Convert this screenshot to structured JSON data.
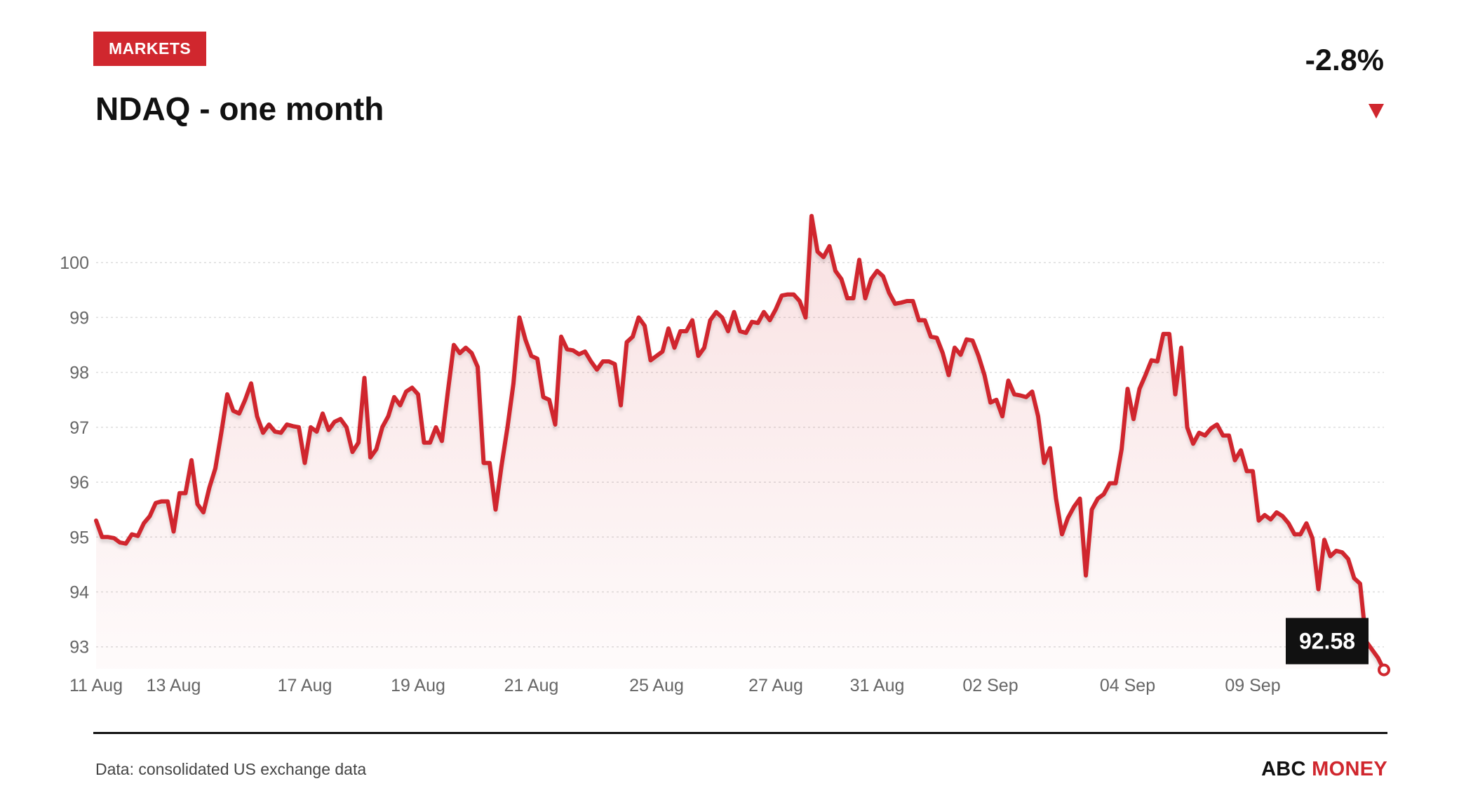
{
  "header": {
    "badge": "MARKETS",
    "title": "NDAQ - one month",
    "change": "-2.8%",
    "direction_icon": "down-triangle-icon"
  },
  "footer": {
    "source": "Data: consolidated US exchange data",
    "brand_part1": "ABC",
    "brand_part2": "MONEY"
  },
  "colors": {
    "accent": "#d0272e",
    "text": "#111111",
    "axis_text": "#666666",
    "grid": "#dddddd",
    "callout_bg": "#111111"
  },
  "chart_data": {
    "type": "area",
    "title": "NDAQ - one month",
    "xlabel": "",
    "ylabel": "",
    "ylim": [
      92.6,
      101.0
    ],
    "yticks": [
      93,
      94,
      95,
      96,
      97,
      98,
      99,
      100
    ],
    "grid": true,
    "x_tick_labels": [
      {
        "label": "11 Aug",
        "index": 0
      },
      {
        "label": "13 Aug",
        "index": 13
      },
      {
        "label": "17 Aug",
        "index": 35
      },
      {
        "label": "19 Aug",
        "index": 54
      },
      {
        "label": "21 Aug",
        "index": 73
      },
      {
        "label": "25 Aug",
        "index": 94
      },
      {
        "label": "27 Aug",
        "index": 114
      },
      {
        "label": "31 Aug",
        "index": 131
      },
      {
        "label": "02 Sep",
        "index": 150
      },
      {
        "label": "04 Sep",
        "index": 173
      },
      {
        "label": "09 Sep",
        "index": 194
      }
    ],
    "last_value_label": "92.58",
    "series": [
      {
        "values": [
          95.3,
          95.0,
          95.0,
          94.98,
          94.9,
          94.88,
          95.05,
          95.02,
          95.25,
          95.38,
          95.62,
          95.65,
          95.65,
          95.1,
          95.8,
          95.8,
          96.4,
          95.6,
          95.45,
          95.9,
          96.25,
          96.9,
          97.6,
          97.3,
          97.25,
          97.5,
          97.8,
          97.2,
          96.9,
          97.05,
          96.92,
          96.9,
          97.05,
          97.02,
          97.0,
          96.35,
          97.0,
          96.92,
          97.25,
          96.95,
          97.1,
          97.15,
          97.0,
          96.55,
          96.72,
          97.9,
          96.45,
          96.6,
          97.0,
          97.2,
          97.55,
          97.4,
          97.65,
          97.72,
          97.6,
          96.72,
          96.72,
          97.0,
          96.75,
          97.65,
          98.5,
          98.35,
          98.45,
          98.35,
          98.1,
          96.35,
          96.35,
          95.5,
          96.3,
          97.0,
          97.8,
          99.0,
          98.6,
          98.3,
          98.25,
          97.55,
          97.5,
          97.05,
          98.65,
          98.42,
          98.4,
          98.33,
          98.38,
          98.2,
          98.05,
          98.2,
          98.2,
          98.15,
          97.4,
          98.55,
          98.65,
          99.0,
          98.85,
          98.22,
          98.3,
          98.38,
          98.8,
          98.45,
          98.75,
          98.75,
          98.95,
          98.3,
          98.45,
          98.95,
          99.1,
          99.0,
          98.75,
          99.1,
          98.75,
          98.72,
          98.92,
          98.9,
          99.1,
          98.95,
          99.15,
          99.4,
          99.42,
          99.42,
          99.3,
          99.0,
          100.85,
          100.2,
          100.1,
          100.3,
          99.85,
          99.7,
          99.35,
          99.35,
          100.05,
          99.35,
          99.7,
          99.85,
          99.75,
          99.45,
          99.25,
          99.27,
          99.3,
          99.3,
          98.95,
          98.95,
          98.65,
          98.63,
          98.35,
          97.95,
          98.45,
          98.32,
          98.6,
          98.58,
          98.3,
          97.95,
          97.45,
          97.5,
          97.2,
          97.85,
          97.6,
          97.58,
          97.55,
          97.65,
          97.2,
          96.35,
          96.62,
          95.7,
          95.05,
          95.35,
          95.55,
          95.7,
          94.3,
          95.5,
          95.7,
          95.78,
          95.98,
          95.98,
          96.6,
          97.7,
          97.15,
          97.7,
          97.95,
          98.22,
          98.2,
          98.7,
          98.7,
          97.6,
          98.45,
          97.0,
          96.7,
          96.9,
          96.85,
          96.98,
          97.05,
          96.85,
          96.85,
          96.4,
          96.58,
          96.2,
          96.2,
          95.3,
          95.4,
          95.32,
          95.45,
          95.38,
          95.25,
          95.05,
          95.05,
          95.25,
          94.98,
          94.05,
          94.95,
          94.65,
          94.75,
          94.72,
          94.6,
          94.25,
          94.15,
          93.1,
          92.95,
          92.8,
          92.58
        ]
      }
    ]
  }
}
